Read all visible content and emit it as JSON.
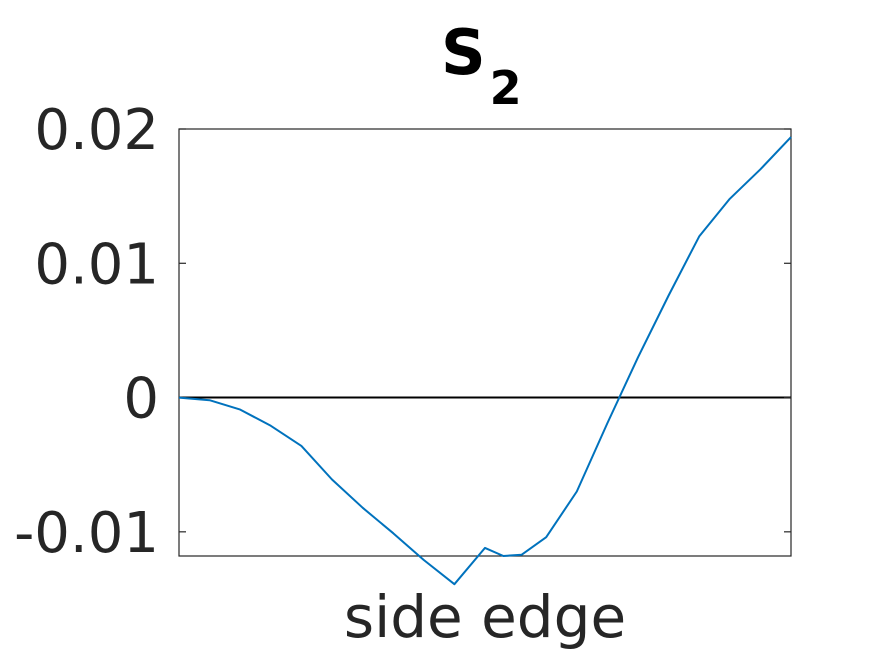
{
  "chart_data": {
    "type": "line",
    "title": "S",
    "title_subscript": "2",
    "xlabel": "side edge",
    "ylabel": "",
    "xlim": [
      0,
      1
    ],
    "ylim": [
      -0.0118,
      0.02
    ],
    "yticks": [
      -0.01,
      0,
      0.01,
      0.02
    ],
    "ytick_labels": [
      "-0.01",
      "0",
      "0.01",
      "0.02"
    ],
    "xticks": [],
    "grid": false,
    "zero_line": true,
    "colors": {
      "series": "#0072BD",
      "zero_line": "#000000",
      "axes": "#262626"
    },
    "series": [
      {
        "x": [
          0,
          0.05,
          0.1,
          0.15,
          0.2,
          0.25,
          0.3,
          0.35,
          0.4,
          0.45,
          0.5,
          0.53,
          0.56,
          0.6,
          0.65,
          0.7,
          0.75,
          0.8,
          0.85,
          0.9,
          0.95,
          1.0
        ],
        "y": [
          0,
          -0.0002,
          -0.0009,
          -0.0021,
          -0.0036,
          -0.0061,
          -0.0082,
          -0.0101,
          -0.0121,
          -0.0139,
          -0.0112,
          -0.0118,
          -0.0117,
          -0.0104,
          -0.007,
          -0.0019,
          0.003,
          0.0076,
          0.012,
          0.0148,
          0.017,
          0.0194
        ]
      }
    ]
  }
}
